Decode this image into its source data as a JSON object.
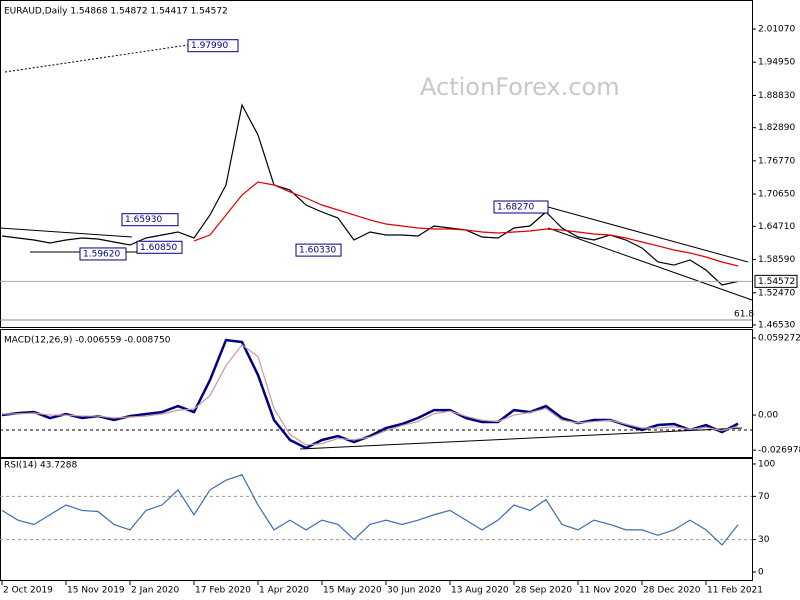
{
  "chart_data": [
    {
      "type": "line",
      "title": "EURAUD,Daily  1.54868 1.54872 1.54417 1.54572",
      "watermark": "ActionForex.com",
      "ylim": [
        1.4653,
        2.0549
      ],
      "yticks": [
        {
          "value": 2.0107,
          "label": "2.01070"
        },
        {
          "value": 1.9495,
          "label": "1.94950"
        },
        {
          "value": 1.8883,
          "label": "1.88830"
        },
        {
          "value": 1.8289,
          "label": "1.82890"
        },
        {
          "value": 1.7677,
          "label": "1.76770"
        },
        {
          "value": 1.7065,
          "label": "1.70650"
        },
        {
          "value": 1.6471,
          "label": "1.64710"
        },
        {
          "value": 1.5859,
          "label": "1.58590"
        },
        {
          "value": 1.5247,
          "label": "1.52470"
        },
        {
          "value": 1.4653,
          "label": "1.46530"
        }
      ],
      "series": [
        {
          "color": "#000000",
          "values": [
            1.6293,
            1.6256,
            1.6219,
            1.6164,
            1.6219,
            1.6256,
            1.6238,
            1.6182,
            1.6127,
            1.6256,
            1.6311,
            1.6367,
            1.6256,
            1.668,
            1.7233,
            1.8707,
            1.8154,
            1.7233,
            1.714,
            1.6864,
            1.6735,
            1.6624,
            1.6219,
            1.6367,
            1.6311,
            1.6311,
            1.6293,
            1.6477,
            1.644,
            1.6403,
            1.6274,
            1.6256,
            1.644,
            1.6477,
            1.6735,
            1.644,
            1.6274,
            1.6219,
            1.6311,
            1.6219,
            1.6072,
            1.5814,
            1.5758,
            1.5851,
            1.5666,
            1.539,
            1.5457
          ]
        },
        {
          "color": "#e00000",
          "values": [
            null,
            null,
            null,
            null,
            null,
            null,
            null,
            null,
            null,
            null,
            null,
            null,
            1.6201,
            1.6311,
            1.668,
            1.7048,
            1.7288,
            1.7233,
            1.7104,
            1.6993,
            1.6864,
            1.6772,
            1.668,
            1.6588,
            1.6514,
            1.6477,
            1.644,
            1.6422,
            1.6422,
            1.6403,
            1.6367,
            1.6348,
            1.6367,
            1.6385,
            1.6422,
            1.6403,
            1.6367,
            1.633,
            1.6311,
            1.6256,
            1.6182,
            1.6109,
            1.6035,
            1.598,
            1.5906,
            1.5814,
            1.574
          ]
        }
      ],
      "annotations": [
        {
          "value": 1.9799,
          "label": "1.97990"
        },
        {
          "value": 1.6593,
          "label": "1.65930"
        },
        {
          "value": 1.5962,
          "label": "1.59620"
        },
        {
          "value": 1.6085,
          "label": "1.60850"
        },
        {
          "value": 1.6033,
          "label": "1.60330"
        },
        {
          "value": 1.6827,
          "label": "1.68270"
        }
      ],
      "price_tag": 1.54572,
      "fib_level": 61.8
    },
    {
      "type": "line",
      "title": "MACD(12,26,9) -0.006559 -0.008750",
      "ylim": [
        -0.0323,
        0.0647
      ],
      "yticks": [
        0.059272,
        {
          "value": 0,
          "label": "0.00"
        },
        -0.026978
      ],
      "series": [
        {
          "color": "#000080",
          "values": [
            0,
            0.0015,
            0.0023,
            -0.0023,
            0.0008,
            -0.0023,
            -0.0008,
            -0.0038,
            -0.0008,
            0.0008,
            0.0023,
            0.0069,
            0.0023,
            0.0269,
            0.0577,
            0.0562,
            0.0308,
            -0.0038,
            -0.0192,
            -0.0254,
            -0.0192,
            -0.0162,
            -0.0208,
            -0.0162,
            -0.01,
            -0.0069,
            -0.0023,
            0.0038,
            0.0038,
            -0.0023,
            -0.0054,
            -0.0054,
            0.0038,
            0.0023,
            0.0069,
            -0.0023,
            -0.0062,
            -0.0038,
            -0.0038,
            -0.0077,
            -0.0115,
            -0.0077,
            -0.0069,
            -0.0115,
            -0.0077,
            -0.0131,
            -0.0066
          ]
        },
        {
          "color": "#c89a9a",
          "values": [
            0.0008,
            0.001,
            0.0015,
            0,
            0,
            -0.0008,
            -0.0008,
            -0.0023,
            -0.0015,
            -0.0008,
            0.0008,
            0.0038,
            0.0046,
            0.015,
            0.038,
            0.054,
            0.045,
            0.005,
            -0.015,
            -0.023,
            -0.022,
            -0.018,
            -0.019,
            -0.017,
            -0.012,
            -0.008,
            -0.005,
            0.001,
            0.003,
            -0.001,
            -0.004,
            -0.005,
            0,
            0.002,
            0.005,
            -0.004,
            -0.006,
            -0.005,
            -0.004,
            -0.007,
            -0.01,
            -0.01,
            -0.009,
            -0.011,
            -0.0095,
            -0.012,
            -0.0088
          ]
        }
      ]
    },
    {
      "type": "line",
      "title": "RSI(14) 43.7288",
      "ylim": [
        -7.4,
        104.6
      ],
      "yticks": [
        100,
        70,
        30,
        0
      ],
      "categories": [
        "2 Oct 2019",
        null,
        null,
        null,
        "15 Nov 2019",
        null,
        null,
        null,
        "2 Jan 2020",
        null,
        null,
        null,
        "17 Feb 2020",
        null,
        null,
        null,
        "1 Apr 2020",
        null,
        null,
        null,
        "15 May 2020",
        null,
        null,
        null,
        "30 Jun 2020",
        null,
        null,
        null,
        "13 Aug 2020",
        null,
        null,
        null,
        "28 Sep 2020",
        null,
        null,
        null,
        "11 Nov 2020",
        null,
        null,
        null,
        "28 Dec 2020",
        null,
        null,
        null,
        "11 Feb 2021",
        null,
        null
      ],
      "series": [
        {
          "color": "#3b6fb0",
          "values": [
            57,
            48,
            44,
            53,
            62,
            57,
            56,
            44,
            39,
            57,
            62,
            76,
            53,
            76,
            85,
            90,
            62,
            39,
            48,
            39,
            48,
            44,
            30,
            44,
            48,
            44,
            48,
            53,
            57,
            48,
            39,
            48,
            62,
            57,
            67,
            44,
            39,
            48,
            44,
            39,
            39,
            34,
            39,
            48,
            39,
            25,
            43.73
          ]
        }
      ]
    }
  ]
}
